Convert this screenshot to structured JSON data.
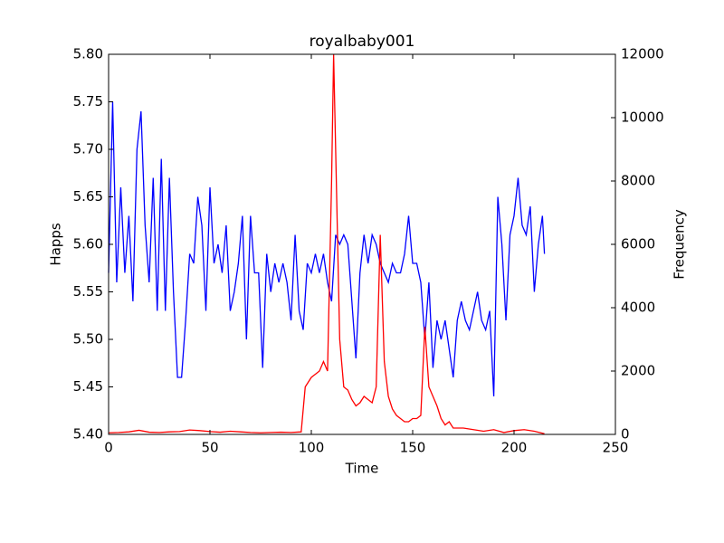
{
  "chart_data": {
    "type": "line",
    "title": "royalbaby001",
    "x_label": "Time",
    "y_label": "Happs",
    "y2_label": "Frequency",
    "xlim": [
      0,
      250
    ],
    "xticks": [
      0,
      50,
      100,
      150,
      200,
      250
    ],
    "ylim": [
      5.4,
      5.8
    ],
    "yticks": [
      {
        "value": 5.4,
        "label": "5.40"
      },
      {
        "value": 5.45,
        "label": "5.45"
      },
      {
        "value": 5.5,
        "label": "5.50"
      },
      {
        "value": 5.55,
        "label": "5.55"
      },
      {
        "value": 5.6,
        "label": "5.60"
      },
      {
        "value": 5.65,
        "label": "5.65"
      },
      {
        "value": 5.7,
        "label": "5.70"
      },
      {
        "value": 5.75,
        "label": "5.75"
      },
      {
        "value": 5.8,
        "label": "5.80"
      }
    ],
    "y2lim": [
      0,
      12000
    ],
    "y2ticks": [
      0,
      2000,
      4000,
      6000,
      8000,
      10000,
      12000
    ],
    "series": [
      {
        "color": "#0000ff",
        "axis": "y",
        "x": [
          0,
          2,
          4,
          6,
          8,
          10,
          12,
          14,
          16,
          18,
          20,
          22,
          24,
          26,
          28,
          30,
          32,
          34,
          36,
          38,
          40,
          42,
          44,
          46,
          48,
          50,
          52,
          54,
          56,
          58,
          60,
          62,
          64,
          66,
          68,
          70,
          72,
          74,
          76,
          78,
          80,
          82,
          84,
          86,
          88,
          90,
          92,
          94,
          96,
          98,
          100,
          102,
          104,
          106,
          108,
          110,
          112,
          114,
          116,
          118,
          120,
          122,
          124,
          126,
          128,
          130,
          132,
          134,
          136,
          138,
          140,
          142,
          144,
          146,
          148,
          150,
          152,
          154,
          156,
          158,
          160,
          162,
          164,
          166,
          168,
          170,
          172,
          174,
          176,
          178,
          180,
          182,
          184,
          186,
          188,
          190,
          192,
          194,
          196,
          198,
          200,
          202,
          204,
          206,
          208,
          210,
          212,
          214,
          215
        ],
        "values": [
          5.57,
          5.75,
          5.56,
          5.66,
          5.57,
          5.63,
          5.54,
          5.7,
          5.74,
          5.62,
          5.56,
          5.67,
          5.53,
          5.69,
          5.53,
          5.67,
          5.55,
          5.46,
          5.46,
          5.52,
          5.59,
          5.58,
          5.65,
          5.62,
          5.53,
          5.66,
          5.58,
          5.6,
          5.57,
          5.62,
          5.53,
          5.55,
          5.58,
          5.63,
          5.5,
          5.63,
          5.57,
          5.57,
          5.47,
          5.59,
          5.55,
          5.58,
          5.56,
          5.58,
          5.56,
          5.52,
          5.61,
          5.53,
          5.51,
          5.58,
          5.57,
          5.59,
          5.57,
          5.59,
          5.56,
          5.54,
          5.61,
          5.6,
          5.61,
          5.6,
          5.54,
          5.48,
          5.57,
          5.61,
          5.58,
          5.61,
          5.6,
          5.58,
          5.57,
          5.56,
          5.58,
          5.57,
          5.57,
          5.59,
          5.63,
          5.58,
          5.58,
          5.56,
          5.5,
          5.56,
          5.47,
          5.52,
          5.5,
          5.52,
          5.49,
          5.46,
          5.52,
          5.54,
          5.52,
          5.51,
          5.53,
          5.55,
          5.52,
          5.51,
          5.53,
          5.44,
          5.65,
          5.6,
          5.52,
          5.61,
          5.63,
          5.67,
          5.62,
          5.61,
          5.64,
          5.55,
          5.6,
          5.63,
          5.59
        ]
      },
      {
        "color": "#ff0000",
        "axis": "y2",
        "x": [
          0,
          5,
          10,
          15,
          20,
          25,
          30,
          35,
          40,
          45,
          50,
          55,
          60,
          65,
          70,
          75,
          80,
          85,
          90,
          95,
          97,
          100,
          102,
          104,
          106,
          108,
          110,
          111,
          112,
          114,
          116,
          118,
          120,
          122,
          124,
          126,
          128,
          130,
          132,
          134,
          136,
          138,
          140,
          142,
          144,
          146,
          148,
          150,
          152,
          154,
          156,
          158,
          160,
          162,
          164,
          166,
          168,
          170,
          175,
          180,
          185,
          190,
          195,
          200,
          205,
          210,
          215
        ],
        "values": [
          50,
          60,
          80,
          130,
          70,
          60,
          80,
          90,
          140,
          120,
          90,
          70,
          100,
          80,
          60,
          50,
          60,
          70,
          60,
          80,
          1500,
          1800,
          1900,
          2000,
          2300,
          2000,
          8000,
          12000,
          9000,
          3000,
          1500,
          1400,
          1100,
          900,
          1000,
          1200,
          1100,
          1000,
          1500,
          6300,
          2300,
          1200,
          800,
          600,
          500,
          400,
          400,
          500,
          500,
          600,
          3400,
          1500,
          1200,
          900,
          500,
          300,
          400,
          200,
          200,
          150,
          100,
          150,
          60,
          120,
          150,
          100,
          20
        ]
      }
    ]
  }
}
